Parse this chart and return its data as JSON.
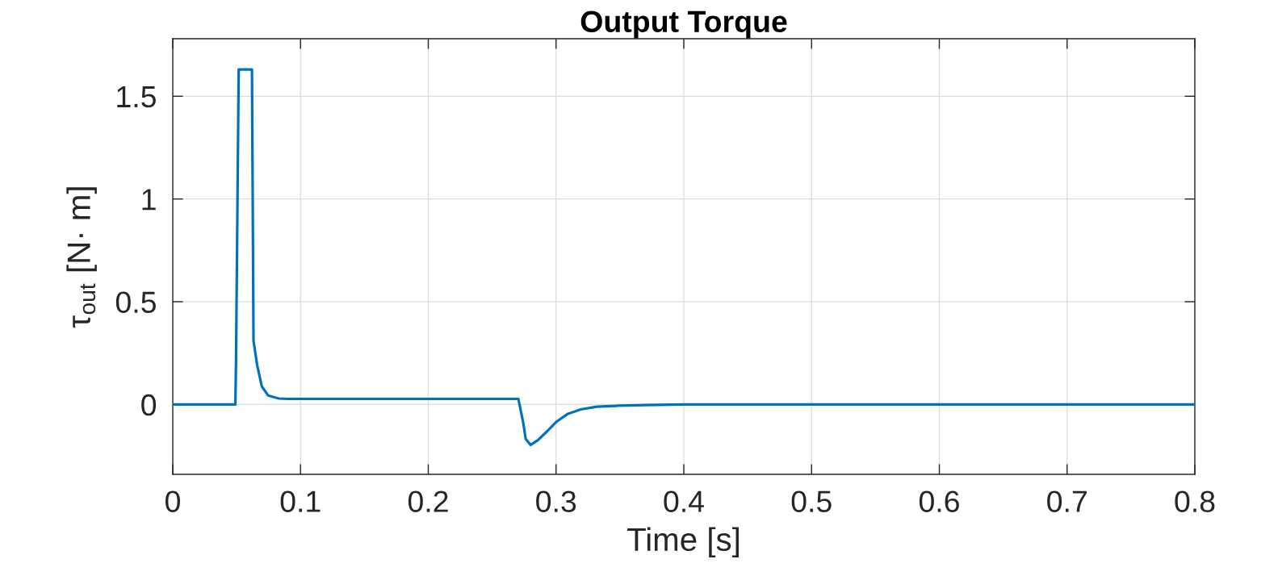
{
  "chart_data": {
    "type": "line",
    "title": "Output Torque",
    "xlabel": "Time [s]",
    "ylabel": "τ$_{out}$ [N· m]",
    "xlim": [
      0,
      0.8
    ],
    "ylim": [
      -0.34,
      1.78
    ],
    "xticks": [
      0,
      0.1,
      0.2,
      0.3,
      0.4,
      0.5,
      0.6,
      0.7,
      0.8
    ],
    "yticks": [
      0,
      0.5,
      1,
      1.5
    ],
    "grid": true,
    "line_style": "solid",
    "series": [
      {
        "color": "#0072bd",
        "x": [
          0,
          0.049,
          0.0495,
          0.0516,
          0.062,
          0.0632,
          0.0661,
          0.0697,
          0.0746,
          0.083,
          0.09,
          0.2705,
          0.2742,
          0.2763,
          0.28,
          0.2858,
          0.2931,
          0.3001,
          0.3089,
          0.3194,
          0.332,
          0.349,
          0.37,
          0.4,
          0.8
        ],
        "values": [
          0,
          0,
          0.2,
          1.63,
          1.63,
          0.31,
          0.19,
          0.088,
          0.044,
          0.029,
          0.027,
          0.027,
          -0.085,
          -0.168,
          -0.197,
          -0.174,
          -0.13,
          -0.085,
          -0.047,
          -0.024,
          -0.011,
          -0.006,
          -0.003,
          0,
          0
        ]
      }
    ]
  }
}
